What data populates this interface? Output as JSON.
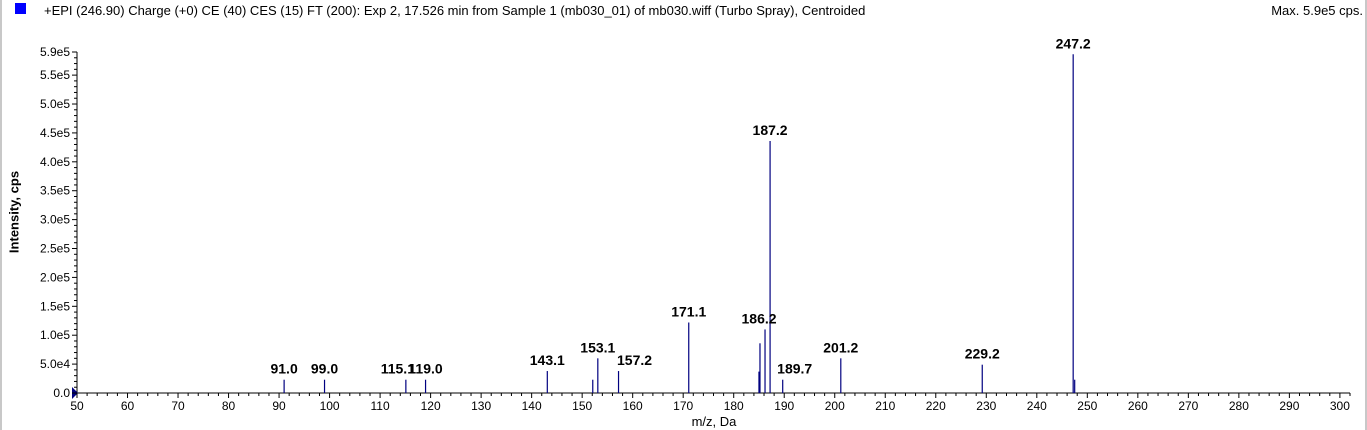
{
  "header": {
    "title": "+EPI (246.90) Charge (+0) CE (40) CES (15) FT (200): Exp 2, 17.526 min from Sample 1 (mb030_01) of mb030.wiff (Turbo Spray), Centroided",
    "max": "Max. 5.9e5 cps."
  },
  "chart_data": {
    "type": "bar",
    "title": "+EPI (246.90) Charge (+0) CE (40) CES (15) FT (200): Exp 2, 17.526 min from Sample 1 (mb030_01) of mb030.wiff (Turbo Spray), Centroided",
    "xlabel": "m/z, Da",
    "ylabel": "Intensity, cps",
    "xlim": [
      50,
      302
    ],
    "ylim": [
      0,
      590000
    ],
    "xticks": [
      "50",
      "60",
      "70",
      "80",
      "90",
      "100",
      "110",
      "120",
      "130",
      "140",
      "150",
      "160",
      "170",
      "180",
      "190",
      "200",
      "210",
      "220",
      "230",
      "240",
      "250",
      "260",
      "270",
      "280",
      "290",
      "300"
    ],
    "xtick_values": [
      50,
      60,
      70,
      80,
      90,
      100,
      110,
      120,
      130,
      140,
      150,
      160,
      170,
      180,
      190,
      200,
      210,
      220,
      230,
      240,
      250,
      260,
      270,
      280,
      290,
      300
    ],
    "yticks": [
      "0.0",
      "5.0e4",
      "1.0e5",
      "1.5e5",
      "2.0e5",
      "2.5e5",
      "3.0e5",
      "3.5e5",
      "4.0e5",
      "4.5e5",
      "5.0e5",
      "5.5e5",
      "5.9e5"
    ],
    "ytick_values": [
      0,
      50000,
      100000,
      150000,
      200000,
      250000,
      300000,
      350000,
      400000,
      450000,
      500000,
      550000,
      590000
    ],
    "grid": false,
    "bar_color": "#000080",
    "peaks": [
      {
        "mz": 91.0,
        "intensity": 23000
      },
      {
        "mz": 99.0,
        "intensity": 23000
      },
      {
        "mz": 115.1,
        "intensity": 23000
      },
      {
        "mz": 119.0,
        "intensity": 23000
      },
      {
        "mz": 143.1,
        "intensity": 38000
      },
      {
        "mz": 152.1,
        "intensity": 23000
      },
      {
        "mz": 153.1,
        "intensity": 60000
      },
      {
        "mz": 157.2,
        "intensity": 38000
      },
      {
        "mz": 171.1,
        "intensity": 122000
      },
      {
        "mz": 185.0,
        "intensity": 37000
      },
      {
        "mz": 185.2,
        "intensity": 86000
      },
      {
        "mz": 186.2,
        "intensity": 110000
      },
      {
        "mz": 187.2,
        "intensity": 436000
      },
      {
        "mz": 189.7,
        "intensity": 23000
      },
      {
        "mz": 201.2,
        "intensity": 60000
      },
      {
        "mz": 229.2,
        "intensity": 49000
      },
      {
        "mz": 247.2,
        "intensity": 586000
      },
      {
        "mz": 247.5,
        "intensity": 23000
      }
    ],
    "labels": [
      {
        "text": "91.0",
        "mz": 91.0
      },
      {
        "text": "99.0",
        "mz": 99.0
      },
      {
        "text": "115.1",
        "mz": 115.1
      },
      {
        "text": "119.0",
        "mz": 119.0
      },
      {
        "text": "143.1",
        "mz": 143.1
      },
      {
        "text": "153.1",
        "mz": 153.1
      },
      {
        "text": "157.2",
        "mz": 157.2
      },
      {
        "text": "171.1",
        "mz": 171.1
      },
      {
        "text": "186.2",
        "mz": 186.2
      },
      {
        "text": "187.2",
        "mz": 187.2
      },
      {
        "text": "189.7",
        "mz": 189.7
      },
      {
        "text": "201.2",
        "mz": 201.2
      },
      {
        "text": "229.2",
        "mz": 229.2
      },
      {
        "text": "247.2",
        "mz": 247.2
      }
    ]
  }
}
